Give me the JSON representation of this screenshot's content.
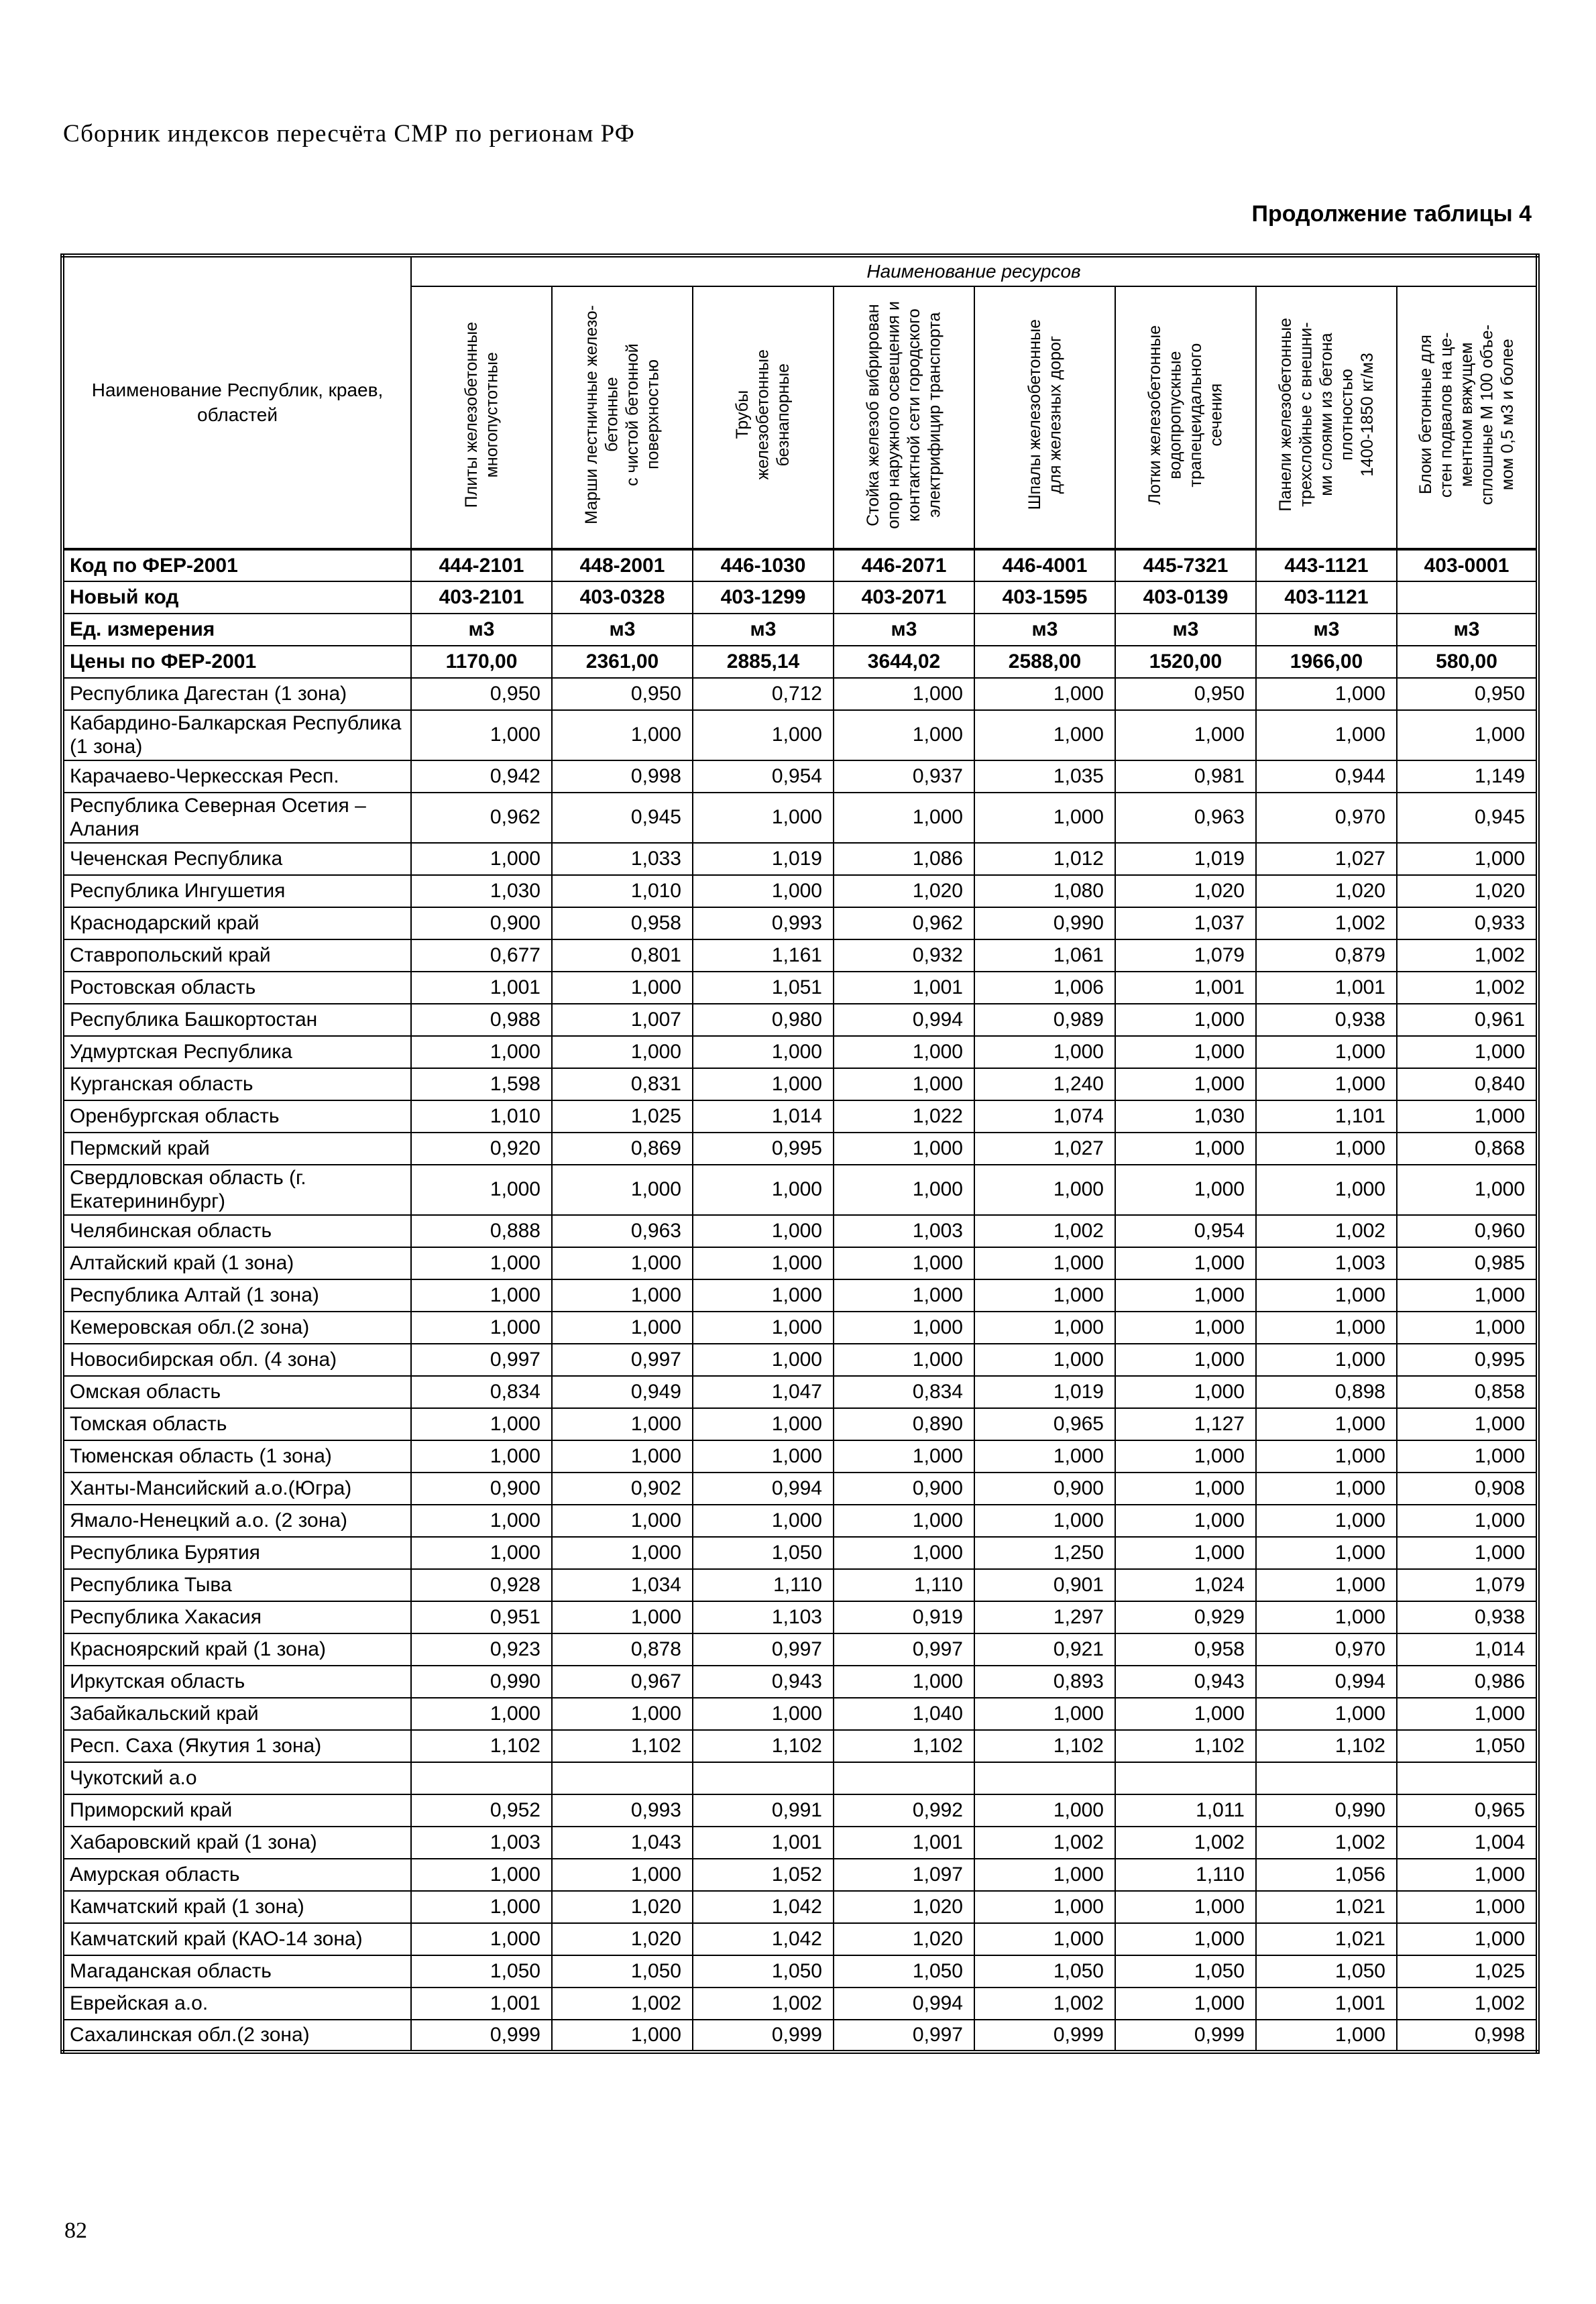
{
  "page": {
    "header": "Сборник индексов пересчёта СМР  по регионам РФ",
    "table_caption": "Продолжение таблицы 4",
    "page_number": "82"
  },
  "table": {
    "resources_header": "Наименование ресурсов",
    "first_col_header": "Наименование Республик, краев, областей",
    "col_headers": [
      "Плиты железобетонные\nмногопустотные",
      "Марши лестничные железо-\nбетонные\nс чистой бетонной\nповерхностью",
      "Трубы\nжелезобетонные\nбезнапорные",
      "Стойка железоб вибрирован\nопор наружного освещения и\nконтактной сети городского\nэлектрифицир транспорта",
      "Шпалы железобетонные\nдля железных дорог",
      "Лотки железобетонные\nводопропускные\nтрапецеидального\nсечения",
      "Панели железобетонные\nтрехслойные с внешни-\nми слоями из бетона\nплотностью\n1400-1850 кг/м3",
      "Блоки бетонные для\nстен подвалов на це-\nментном вяжущем\nсплошные М 100 объе-\nмом 0,5 м3 и более"
    ],
    "meta_rows": [
      {
        "label": "Код по ФЕР-2001",
        "values": [
          "444-2101",
          "448-2001",
          "446-1030",
          "446-2071",
          "446-4001",
          "445-7321",
          "443-1121",
          "403-0001"
        ]
      },
      {
        "label": "Новый код",
        "values": [
          "403-2101",
          "403-0328",
          "403-1299",
          "403-2071",
          "403-1595",
          "403-0139",
          "403-1121",
          ""
        ]
      },
      {
        "label": "Ед. измерения",
        "values": [
          "м3",
          "м3",
          "м3",
          "м3",
          "м3",
          "м3",
          "м3",
          "м3"
        ]
      },
      {
        "label": "Цены по ФЕР-2001",
        "values": [
          "1170,00",
          "2361,00",
          "2885,14",
          "3644,02",
          "2588,00",
          "1520,00",
          "1966,00",
          "580,00"
        ]
      }
    ],
    "rows": [
      {
        "region": "Республика Дагестан (1 зона)",
        "values": [
          "0,950",
          "0,950",
          "0,712",
          "1,000",
          "1,000",
          "0,950",
          "1,000",
          "0,950"
        ]
      },
      {
        "region": "Кабардино-Балкарская Республика (1 зона)",
        "values": [
          "1,000",
          "1,000",
          "1,000",
          "1,000",
          "1,000",
          "1,000",
          "1,000",
          "1,000"
        ]
      },
      {
        "region": "Карачаево-Черкесская Респ.",
        "values": [
          "0,942",
          "0,998",
          "0,954",
          "0,937",
          "1,035",
          "0,981",
          "0,944",
          "1,149"
        ]
      },
      {
        "region": "Республика Северная Осетия – Алания",
        "values": [
          "0,962",
          "0,945",
          "1,000",
          "1,000",
          "1,000",
          "0,963",
          "0,970",
          "0,945"
        ]
      },
      {
        "region": "Чеченская Республика",
        "values": [
          "1,000",
          "1,033",
          "1,019",
          "1,086",
          "1,012",
          "1,019",
          "1,027",
          "1,000"
        ]
      },
      {
        "region": "Республика Ингушетия",
        "values": [
          "1,030",
          "1,010",
          "1,000",
          "1,020",
          "1,080",
          "1,020",
          "1,020",
          "1,020"
        ]
      },
      {
        "region": "Краснодарский край",
        "values": [
          "0,900",
          "0,958",
          "0,993",
          "0,962",
          "0,990",
          "1,037",
          "1,002",
          "0,933"
        ]
      },
      {
        "region": "Ставропольский край",
        "values": [
          "0,677",
          "0,801",
          "1,161",
          "0,932",
          "1,061",
          "1,079",
          "0,879",
          "1,002"
        ]
      },
      {
        "region": "Ростовская область",
        "values": [
          "1,001",
          "1,000",
          "1,051",
          "1,001",
          "1,006",
          "1,001",
          "1,001",
          "1,002"
        ]
      },
      {
        "region": "Республика Башкортостан",
        "values": [
          "0,988",
          "1,007",
          "0,980",
          "0,994",
          "0,989",
          "1,000",
          "0,938",
          "0,961"
        ]
      },
      {
        "region": "Удмуртская Республика",
        "values": [
          "1,000",
          "1,000",
          "1,000",
          "1,000",
          "1,000",
          "1,000",
          "1,000",
          "1,000"
        ]
      },
      {
        "region": "Курганская область",
        "values": [
          "1,598",
          "0,831",
          "1,000",
          "1,000",
          "1,240",
          "1,000",
          "1,000",
          "0,840"
        ]
      },
      {
        "region": "Оренбургская область",
        "values": [
          "1,010",
          "1,025",
          "1,014",
          "1,022",
          "1,074",
          "1,030",
          "1,101",
          "1,000"
        ]
      },
      {
        "region": "Пермский край",
        "values": [
          "0,920",
          "0,869",
          "0,995",
          "1,000",
          "1,027",
          "1,000",
          "1,000",
          "0,868"
        ]
      },
      {
        "region": "Свердловская область (г. Екатерининбург)",
        "values": [
          "1,000",
          "1,000",
          "1,000",
          "1,000",
          "1,000",
          "1,000",
          "1,000",
          "1,000"
        ]
      },
      {
        "region": "Челябинская область",
        "values": [
          "0,888",
          "0,963",
          "1,000",
          "1,003",
          "1,002",
          "0,954",
          "1,002",
          "0,960"
        ]
      },
      {
        "region": "Алтайский край (1 зона)",
        "values": [
          "1,000",
          "1,000",
          "1,000",
          "1,000",
          "1,000",
          "1,000",
          "1,003",
          "0,985"
        ]
      },
      {
        "region": "Республика Алтай (1 зона)",
        "values": [
          "1,000",
          "1,000",
          "1,000",
          "1,000",
          "1,000",
          "1,000",
          "1,000",
          "1,000"
        ]
      },
      {
        "region": "Кемеровская обл.(2 зона)",
        "values": [
          "1,000",
          "1,000",
          "1,000",
          "1,000",
          "1,000",
          "1,000",
          "1,000",
          "1,000"
        ]
      },
      {
        "region": "Новосибирская обл. (4 зона)",
        "values": [
          "0,997",
          "0,997",
          "1,000",
          "1,000",
          "1,000",
          "1,000",
          "1,000",
          "0,995"
        ]
      },
      {
        "region": "Омская область",
        "values": [
          "0,834",
          "0,949",
          "1,047",
          "0,834",
          "1,019",
          "1,000",
          "0,898",
          "0,858"
        ]
      },
      {
        "region": "Томская область",
        "values": [
          "1,000",
          "1,000",
          "1,000",
          "0,890",
          "0,965",
          "1,127",
          "1,000",
          "1,000"
        ]
      },
      {
        "region": "Тюменская область (1 зона)",
        "values": [
          "1,000",
          "1,000",
          "1,000",
          "1,000",
          "1,000",
          "1,000",
          "1,000",
          "1,000"
        ]
      },
      {
        "region": "Ханты-Мансийский а.о.(Югра)",
        "values": [
          "0,900",
          "0,902",
          "0,994",
          "0,900",
          "0,900",
          "1,000",
          "1,000",
          "0,908"
        ]
      },
      {
        "region": "Ямало-Ненецкий а.о. (2 зона)",
        "values": [
          "1,000",
          "1,000",
          "1,000",
          "1,000",
          "1,000",
          "1,000",
          "1,000",
          "1,000"
        ]
      },
      {
        "region": "Республика Бурятия",
        "values": [
          "1,000",
          "1,000",
          "1,050",
          "1,000",
          "1,250",
          "1,000",
          "1,000",
          "1,000"
        ]
      },
      {
        "region": "Республика Тыва",
        "values": [
          "0,928",
          "1,034",
          "1,110",
          "1,110",
          "0,901",
          "1,024",
          "1,000",
          "1,079"
        ]
      },
      {
        "region": "Республика Хакасия",
        "values": [
          "0,951",
          "1,000",
          "1,103",
          "0,919",
          "1,297",
          "0,929",
          "1,000",
          "0,938"
        ]
      },
      {
        "region": "Красноярский край (1 зона)",
        "values": [
          "0,923",
          "0,878",
          "0,997",
          "0,997",
          "0,921",
          "0,958",
          "0,970",
          "1,014"
        ]
      },
      {
        "region": "Иркутская область",
        "values": [
          "0,990",
          "0,967",
          "0,943",
          "1,000",
          "0,893",
          "0,943",
          "0,994",
          "0,986"
        ]
      },
      {
        "region": "Забайкальский край",
        "values": [
          "1,000",
          "1,000",
          "1,000",
          "1,040",
          "1,000",
          "1,000",
          "1,000",
          "1,000"
        ]
      },
      {
        "region": "Респ. Саха (Якутия 1 зона)",
        "values": [
          "1,102",
          "1,102",
          "1,102",
          "1,102",
          "1,102",
          "1,102",
          "1,102",
          "1,050"
        ]
      },
      {
        "region": "Чукотский а.о",
        "values": [
          "",
          "",
          "",
          "",
          "",
          "",
          "",
          ""
        ]
      },
      {
        "region": "Приморский край",
        "values": [
          "0,952",
          "0,993",
          "0,991",
          "0,992",
          "1,000",
          "1,011",
          "0,990",
          "0,965"
        ]
      },
      {
        "region": "Хабаровский край (1 зона)",
        "values": [
          "1,003",
          "1,043",
          "1,001",
          "1,001",
          "1,002",
          "1,002",
          "1,002",
          "1,004"
        ]
      },
      {
        "region": "Амурская область",
        "values": [
          "1,000",
          "1,000",
          "1,052",
          "1,097",
          "1,000",
          "1,110",
          "1,056",
          "1,000"
        ]
      },
      {
        "region": "Камчатский край (1 зона)",
        "values": [
          "1,000",
          "1,020",
          "1,042",
          "1,020",
          "1,000",
          "1,000",
          "1,021",
          "1,000"
        ]
      },
      {
        "region": "Камчатский край (КАО-14 зона)",
        "values": [
          "1,000",
          "1,020",
          "1,042",
          "1,020",
          "1,000",
          "1,000",
          "1,021",
          "1,000"
        ]
      },
      {
        "region": "Магаданская область",
        "values": [
          "1,050",
          "1,050",
          "1,050",
          "1,050",
          "1,050",
          "1,050",
          "1,050",
          "1,025"
        ]
      },
      {
        "region": "Еврейская а.о.",
        "values": [
          "1,001",
          "1,002",
          "1,002",
          "0,994",
          "1,002",
          "1,000",
          "1,001",
          "1,002"
        ]
      },
      {
        "region": "Сахалинская обл.(2 зона)",
        "values": [
          "0,999",
          "1,000",
          "0,999",
          "0,997",
          "0,999",
          "0,999",
          "1,000",
          "0,998"
        ]
      }
    ]
  }
}
